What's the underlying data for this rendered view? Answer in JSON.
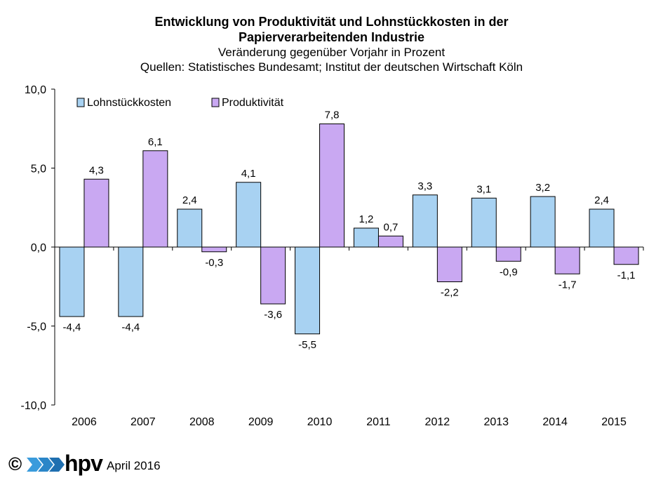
{
  "chart_data": {
    "type": "bar",
    "title": "Entwicklung von Produktivität und Lohnstückkosten in der Papierverarbeitenden Industrie",
    "title_lines": [
      "Entwicklung von Produktivität und Lohnstückkosten in der",
      "Papierverarbeitenden Industrie"
    ],
    "subtitle": "Veränderung gegenüber Vorjahr in Prozent",
    "source": "Quellen: Statistisches Bundesamt; Institut der deutschen Wirtschaft Köln",
    "categories": [
      "2006",
      "2007",
      "2008",
      "2009",
      "2010",
      "2011",
      "2012",
      "2013",
      "2014",
      "2015"
    ],
    "series": [
      {
        "name": "Lohnstückkosten",
        "color": "#a8d2f2",
        "values": [
          -4.4,
          -4.4,
          2.4,
          4.1,
          -5.5,
          1.2,
          3.3,
          3.1,
          3.2,
          2.4
        ],
        "labels": [
          "-4,4",
          "-4,4",
          "2,4",
          "4,1",
          "-5,5",
          "1,2",
          "3,3",
          "3,1",
          "3,2",
          "2,4"
        ]
      },
      {
        "name": "Produktivität",
        "color": "#c9a8f2",
        "values": [
          4.3,
          6.1,
          -0.3,
          -3.6,
          7.8,
          0.7,
          -2.2,
          -0.9,
          -1.7,
          -1.1
        ],
        "labels": [
          "4,3",
          "6,1",
          "-0,3",
          "-3,6",
          "7,8",
          "0,7",
          "-2,2",
          "-0,9",
          "-1,7",
          "-1,1"
        ]
      }
    ],
    "ylim": [
      -10,
      10
    ],
    "yticks": [
      10,
      5,
      0,
      -5,
      -10
    ],
    "ytick_labels": [
      "10,0",
      "5,0",
      "0,0",
      "-5,0",
      "-10,0"
    ],
    "legend_position": "top-left",
    "grid": false
  },
  "footer": {
    "copyright": "©",
    "logo_text": "hpv",
    "date": "April 2016"
  }
}
